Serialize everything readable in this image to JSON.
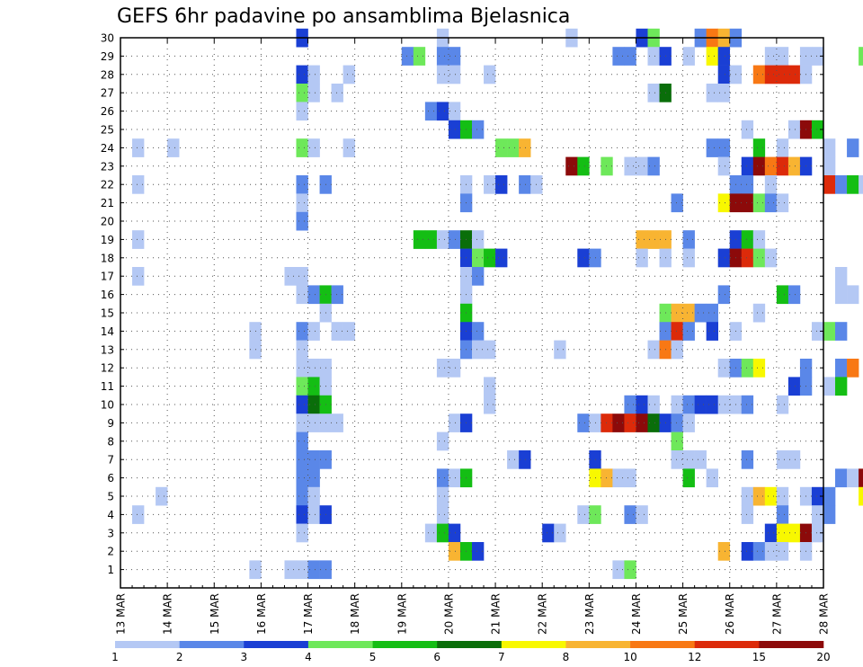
{
  "chart_data": {
    "type": "heatmap",
    "title": "GEFS 6hr padavine po ansamblima Bjelasnica",
    "xlabel": "",
    "ylabel": "",
    "x_tick_labels": [
      "13 MAR",
      "14 MAR",
      "15 MAR",
      "16 MAR",
      "17 MAR",
      "18 MAR",
      "19 MAR",
      "20 MAR",
      "21 MAR",
      "22 MAR",
      "23 MAR",
      "24 MAR",
      "25 MAR",
      "26 MAR",
      "27 MAR",
      "28 MAR"
    ],
    "y_tick_labels": [
      "1",
      "2",
      "3",
      "4",
      "5",
      "6",
      "7",
      "8",
      "9",
      "10",
      "11",
      "12",
      "13",
      "14",
      "15",
      "16",
      "17",
      "18",
      "19",
      "20",
      "21",
      "22",
      "23",
      "24",
      "25",
      "26",
      "27",
      "28",
      "29",
      "30"
    ],
    "x_range_days": [
      13,
      28
    ],
    "y_range": [
      0,
      30
    ],
    "grid": "dotted",
    "scale_labels": [
      "1",
      "2",
      "3",
      "4",
      "5",
      "6",
      "7",
      "8",
      "10",
      "12",
      "15",
      "20"
    ],
    "scale_colors": [
      "#b4c8f4",
      "#5a87e8",
      "#1a3fd4",
      "#6ee85a",
      "#14be14",
      "#0a6e0a",
      "#f8f800",
      "#f8b432",
      "#f87814",
      "#dc2a0a",
      "#8c0a0a"
    ],
    "cells": [
      [
        16.75,
        30,
        2
      ],
      [
        19.75,
        30,
        0
      ],
      [
        22.5,
        30,
        0
      ],
      [
        24.0,
        30,
        2
      ],
      [
        24.25,
        30,
        3
      ],
      [
        25.25,
        30,
        1
      ],
      [
        25.5,
        30,
        8
      ],
      [
        25.75,
        30,
        7
      ],
      [
        26.0,
        30,
        1
      ],
      [
        19.0,
        29,
        1
      ],
      [
        19.25,
        29,
        3
      ],
      [
        19.75,
        29,
        1
      ],
      [
        20.0,
        29,
        1
      ],
      [
        23.5,
        29,
        1
      ],
      [
        23.75,
        29,
        1
      ],
      [
        24.25,
        29,
        0
      ],
      [
        24.5,
        29,
        2
      ],
      [
        25.0,
        29,
        0
      ],
      [
        25.5,
        29,
        6
      ],
      [
        25.75,
        29,
        2
      ],
      [
        26.75,
        29,
        0
      ],
      [
        27.0,
        29,
        0
      ],
      [
        27.5,
        29,
        0
      ],
      [
        27.75,
        29,
        0
      ],
      [
        28.75,
        29,
        3
      ],
      [
        16.75,
        28,
        2
      ],
      [
        17.0,
        28,
        0
      ],
      [
        17.75,
        28,
        0
      ],
      [
        19.75,
        28,
        0
      ],
      [
        20.0,
        28,
        0
      ],
      [
        20.75,
        28,
        0
      ],
      [
        25.75,
        28,
        2
      ],
      [
        26.0,
        28,
        0
      ],
      [
        26.5,
        28,
        8
      ],
      [
        26.75,
        28,
        9
      ],
      [
        27.0,
        28,
        9
      ],
      [
        27.25,
        28,
        9
      ],
      [
        27.5,
        28,
        0
      ],
      [
        16.75,
        27,
        3
      ],
      [
        17.0,
        27,
        0
      ],
      [
        17.5,
        27,
        0
      ],
      [
        24.25,
        27,
        0
      ],
      [
        24.5,
        27,
        5
      ],
      [
        25.5,
        27,
        0
      ],
      [
        25.75,
        27,
        0
      ],
      [
        16.75,
        26,
        0
      ],
      [
        19.5,
        26,
        1
      ],
      [
        19.75,
        26,
        2
      ],
      [
        20.0,
        26,
        0
      ],
      [
        20.0,
        25,
        2
      ],
      [
        20.25,
        25,
        4
      ],
      [
        20.5,
        25,
        1
      ],
      [
        26.25,
        25,
        0
      ],
      [
        27.25,
        25,
        0
      ],
      [
        27.5,
        25,
        10
      ],
      [
        27.75,
        25,
        4
      ],
      [
        13.25,
        24,
        0
      ],
      [
        14.0,
        24,
        0
      ],
      [
        16.75,
        24,
        3
      ],
      [
        17.0,
        24,
        0
      ],
      [
        17.75,
        24,
        0
      ],
      [
        21.0,
        24,
        3
      ],
      [
        21.25,
        24,
        3
      ],
      [
        21.5,
        24,
        7
      ],
      [
        25.5,
        24,
        1
      ],
      [
        25.75,
        24,
        1
      ],
      [
        26.5,
        24,
        4
      ],
      [
        27.0,
        24,
        0
      ],
      [
        28.0,
        24,
        0
      ],
      [
        28.5,
        24,
        1
      ],
      [
        22.5,
        23,
        10
      ],
      [
        22.75,
        23,
        4
      ],
      [
        23.25,
        23,
        3
      ],
      [
        23.75,
        23,
        0
      ],
      [
        24.0,
        23,
        0
      ],
      [
        24.25,
        23,
        1
      ],
      [
        25.75,
        23,
        0
      ],
      [
        26.25,
        23,
        2
      ],
      [
        26.5,
        23,
        10
      ],
      [
        26.75,
        23,
        8
      ],
      [
        27.0,
        23,
        9
      ],
      [
        27.25,
        23,
        7
      ],
      [
        27.5,
        23,
        2
      ],
      [
        28.0,
        23,
        0
      ],
      [
        13.25,
        22,
        0
      ],
      [
        16.75,
        22,
        1
      ],
      [
        17.25,
        22,
        1
      ],
      [
        20.25,
        22,
        0
      ],
      [
        20.75,
        22,
        0
      ],
      [
        21.0,
        22,
        2
      ],
      [
        21.5,
        22,
        1
      ],
      [
        21.75,
        22,
        0
      ],
      [
        26.0,
        22,
        1
      ],
      [
        26.25,
        22,
        1
      ],
      [
        26.75,
        22,
        0
      ],
      [
        28.0,
        22,
        9
      ],
      [
        28.25,
        22,
        1
      ],
      [
        28.5,
        22,
        4
      ],
      [
        28.75,
        22,
        0
      ],
      [
        16.75,
        21,
        0
      ],
      [
        20.25,
        21,
        1
      ],
      [
        24.75,
        21,
        1
      ],
      [
        25.75,
        21,
        6
      ],
      [
        26.0,
        21,
        10
      ],
      [
        26.25,
        21,
        10
      ],
      [
        26.5,
        21,
        3
      ],
      [
        26.75,
        21,
        1
      ],
      [
        27.0,
        21,
        0
      ],
      [
        16.75,
        20,
        1
      ],
      [
        13.25,
        19,
        0
      ],
      [
        19.25,
        19,
        4
      ],
      [
        19.5,
        19,
        4
      ],
      [
        19.75,
        19,
        0
      ],
      [
        20.0,
        19,
        1
      ],
      [
        20.25,
        19,
        5
      ],
      [
        20.5,
        19,
        0
      ],
      [
        24.0,
        19,
        7
      ],
      [
        24.25,
        19,
        7
      ],
      [
        24.5,
        19,
        7
      ],
      [
        25.0,
        19,
        1
      ],
      [
        26.0,
        19,
        2
      ],
      [
        26.25,
        19,
        4
      ],
      [
        26.5,
        19,
        0
      ],
      [
        20.25,
        18,
        2
      ],
      [
        20.5,
        18,
        3
      ],
      [
        20.75,
        18,
        4
      ],
      [
        21.0,
        18,
        2
      ],
      [
        22.75,
        18,
        2
      ],
      [
        23.0,
        18,
        1
      ],
      [
        24.0,
        18,
        0
      ],
      [
        24.5,
        18,
        0
      ],
      [
        25.0,
        18,
        0
      ],
      [
        25.75,
        18,
        2
      ],
      [
        26.0,
        18,
        10
      ],
      [
        26.25,
        18,
        9
      ],
      [
        26.5,
        18,
        3
      ],
      [
        26.75,
        18,
        0
      ],
      [
        13.25,
        17,
        0
      ],
      [
        16.5,
        17,
        0
      ],
      [
        16.75,
        17,
        0
      ],
      [
        20.25,
        17,
        0
      ],
      [
        20.5,
        17,
        1
      ],
      [
        28.25,
        17,
        0
      ],
      [
        16.75,
        16,
        0
      ],
      [
        17.0,
        16,
        1
      ],
      [
        17.25,
        16,
        4
      ],
      [
        17.5,
        16,
        1
      ],
      [
        20.25,
        16,
        0
      ],
      [
        25.75,
        16,
        1
      ],
      [
        27.0,
        16,
        4
      ],
      [
        27.25,
        16,
        1
      ],
      [
        28.25,
        16,
        0
      ],
      [
        28.5,
        16,
        0
      ],
      [
        17.25,
        15,
        0
      ],
      [
        20.25,
        15,
        4
      ],
      [
        24.5,
        15,
        3
      ],
      [
        24.75,
        15,
        7
      ],
      [
        25.0,
        15,
        7
      ],
      [
        25.25,
        15,
        1
      ],
      [
        25.5,
        15,
        1
      ],
      [
        26.5,
        15,
        0
      ],
      [
        15.75,
        14,
        0
      ],
      [
        16.75,
        14,
        1
      ],
      [
        17.0,
        14,
        0
      ],
      [
        17.5,
        14,
        0
      ],
      [
        17.75,
        14,
        0
      ],
      [
        20.25,
        14,
        2
      ],
      [
        20.5,
        14,
        1
      ],
      [
        24.5,
        14,
        1
      ],
      [
        24.75,
        14,
        9
      ],
      [
        25.0,
        14,
        1
      ],
      [
        25.5,
        14,
        2
      ],
      [
        26.0,
        14,
        0
      ],
      [
        27.75,
        14,
        0
      ],
      [
        28.0,
        14,
        3
      ],
      [
        28.25,
        14,
        1
      ],
      [
        15.75,
        13,
        0
      ],
      [
        16.75,
        13,
        0
      ],
      [
        20.25,
        13,
        1
      ],
      [
        20.5,
        13,
        0
      ],
      [
        20.75,
        13,
        0
      ],
      [
        22.25,
        13,
        0
      ],
      [
        24.25,
        13,
        0
      ],
      [
        24.5,
        13,
        8
      ],
      [
        24.75,
        13,
        0
      ],
      [
        16.75,
        12,
        0
      ],
      [
        17.0,
        12,
        0
      ],
      [
        17.25,
        12,
        0
      ],
      [
        19.75,
        12,
        0
      ],
      [
        20.0,
        12,
        0
      ],
      [
        25.75,
        12,
        0
      ],
      [
        26.0,
        12,
        1
      ],
      [
        26.25,
        12,
        3
      ],
      [
        26.5,
        12,
        6
      ],
      [
        27.5,
        12,
        1
      ],
      [
        28.25,
        12,
        1
      ],
      [
        28.5,
        12,
        8
      ],
      [
        16.75,
        11,
        3
      ],
      [
        17.0,
        11,
        4
      ],
      [
        17.25,
        11,
        0
      ],
      [
        20.75,
        11,
        0
      ],
      [
        27.25,
        11,
        2
      ],
      [
        27.5,
        11,
        1
      ],
      [
        28.0,
        11,
        0
      ],
      [
        28.25,
        11,
        4
      ],
      [
        16.75,
        10,
        2
      ],
      [
        17.0,
        10,
        5
      ],
      [
        17.25,
        10,
        4
      ],
      [
        20.75,
        10,
        0
      ],
      [
        23.75,
        10,
        1
      ],
      [
        24.0,
        10,
        2
      ],
      [
        24.25,
        10,
        0
      ],
      [
        24.75,
        10,
        0
      ],
      [
        25.0,
        10,
        1
      ],
      [
        25.25,
        10,
        2
      ],
      [
        25.5,
        10,
        2
      ],
      [
        25.75,
        10,
        0
      ],
      [
        26.0,
        10,
        0
      ],
      [
        26.25,
        10,
        1
      ],
      [
        27.0,
        10,
        0
      ],
      [
        16.75,
        9,
        0
      ],
      [
        17.0,
        9,
        0
      ],
      [
        17.25,
        9,
        0
      ],
      [
        17.5,
        9,
        0
      ],
      [
        20.0,
        9,
        0
      ],
      [
        20.25,
        9,
        2
      ],
      [
        22.75,
        9,
        1
      ],
      [
        23.0,
        9,
        0
      ],
      [
        23.25,
        9,
        9
      ],
      [
        23.5,
        9,
        10
      ],
      [
        23.75,
        9,
        9
      ],
      [
        24.0,
        9,
        10
      ],
      [
        24.25,
        9,
        5
      ],
      [
        24.5,
        9,
        2
      ],
      [
        24.75,
        9,
        1
      ],
      [
        25.0,
        9,
        0
      ],
      [
        16.75,
        8,
        1
      ],
      [
        19.75,
        8,
        0
      ],
      [
        24.75,
        8,
        3
      ],
      [
        16.75,
        7,
        1
      ],
      [
        17.0,
        7,
        1
      ],
      [
        17.25,
        7,
        1
      ],
      [
        21.25,
        7,
        0
      ],
      [
        21.5,
        7,
        2
      ],
      [
        23.0,
        7,
        2
      ],
      [
        24.75,
        7,
        0
      ],
      [
        25.0,
        7,
        0
      ],
      [
        25.25,
        7,
        0
      ],
      [
        26.25,
        7,
        1
      ],
      [
        27.0,
        7,
        0
      ],
      [
        27.25,
        7,
        0
      ],
      [
        16.75,
        6,
        1
      ],
      [
        17.0,
        6,
        1
      ],
      [
        19.75,
        6,
        1
      ],
      [
        20.0,
        6,
        0
      ],
      [
        20.25,
        6,
        4
      ],
      [
        23.0,
        6,
        6
      ],
      [
        23.25,
        6,
        7
      ],
      [
        23.5,
        6,
        0
      ],
      [
        23.75,
        6,
        0
      ],
      [
        25.0,
        6,
        4
      ],
      [
        25.5,
        6,
        0
      ],
      [
        28.25,
        6,
        1
      ],
      [
        28.5,
        6,
        0
      ],
      [
        28.75,
        6,
        10
      ],
      [
        16.75,
        5,
        1
      ],
      [
        17.0,
        5,
        0
      ],
      [
        13.75,
        5,
        0
      ],
      [
        19.75,
        5,
        0
      ],
      [
        26.25,
        5,
        0
      ],
      [
        26.5,
        5,
        7
      ],
      [
        26.75,
        5,
        6
      ],
      [
        27.0,
        5,
        0
      ],
      [
        27.5,
        5,
        0
      ],
      [
        27.75,
        5,
        2
      ],
      [
        28.0,
        5,
        1
      ],
      [
        28.75,
        5,
        6
      ],
      [
        13.25,
        4,
        0
      ],
      [
        16.75,
        4,
        2
      ],
      [
        17.0,
        4,
        0
      ],
      [
        17.25,
        4,
        2
      ],
      [
        19.75,
        4,
        0
      ],
      [
        22.75,
        4,
        0
      ],
      [
        23.0,
        4,
        3
      ],
      [
        23.75,
        4,
        1
      ],
      [
        24.0,
        4,
        0
      ],
      [
        26.25,
        4,
        0
      ],
      [
        27.0,
        4,
        1
      ],
      [
        27.75,
        4,
        0
      ],
      [
        28.0,
        4,
        1
      ],
      [
        16.75,
        3,
        0
      ],
      [
        19.5,
        3,
        0
      ],
      [
        19.75,
        3,
        4
      ],
      [
        20.0,
        3,
        2
      ],
      [
        22.0,
        3,
        2
      ],
      [
        22.25,
        3,
        0
      ],
      [
        26.75,
        3,
        2
      ],
      [
        27.0,
        3,
        6
      ],
      [
        27.25,
        3,
        6
      ],
      [
        27.5,
        3,
        10
      ],
      [
        27.75,
        3,
        0
      ],
      [
        20.0,
        2,
        7
      ],
      [
        20.25,
        2,
        4
      ],
      [
        20.5,
        2,
        2
      ],
      [
        25.75,
        2,
        7
      ],
      [
        26.25,
        2,
        2
      ],
      [
        26.5,
        2,
        1
      ],
      [
        26.75,
        2,
        0
      ],
      [
        27.0,
        2,
        0
      ],
      [
        27.5,
        2,
        0
      ],
      [
        15.75,
        1,
        0
      ],
      [
        16.5,
        1,
        0
      ],
      [
        16.75,
        1,
        0
      ],
      [
        17.0,
        1,
        1
      ],
      [
        17.25,
        1,
        1
      ],
      [
        23.5,
        1,
        0
      ],
      [
        23.75,
        1,
        3
      ]
    ]
  }
}
